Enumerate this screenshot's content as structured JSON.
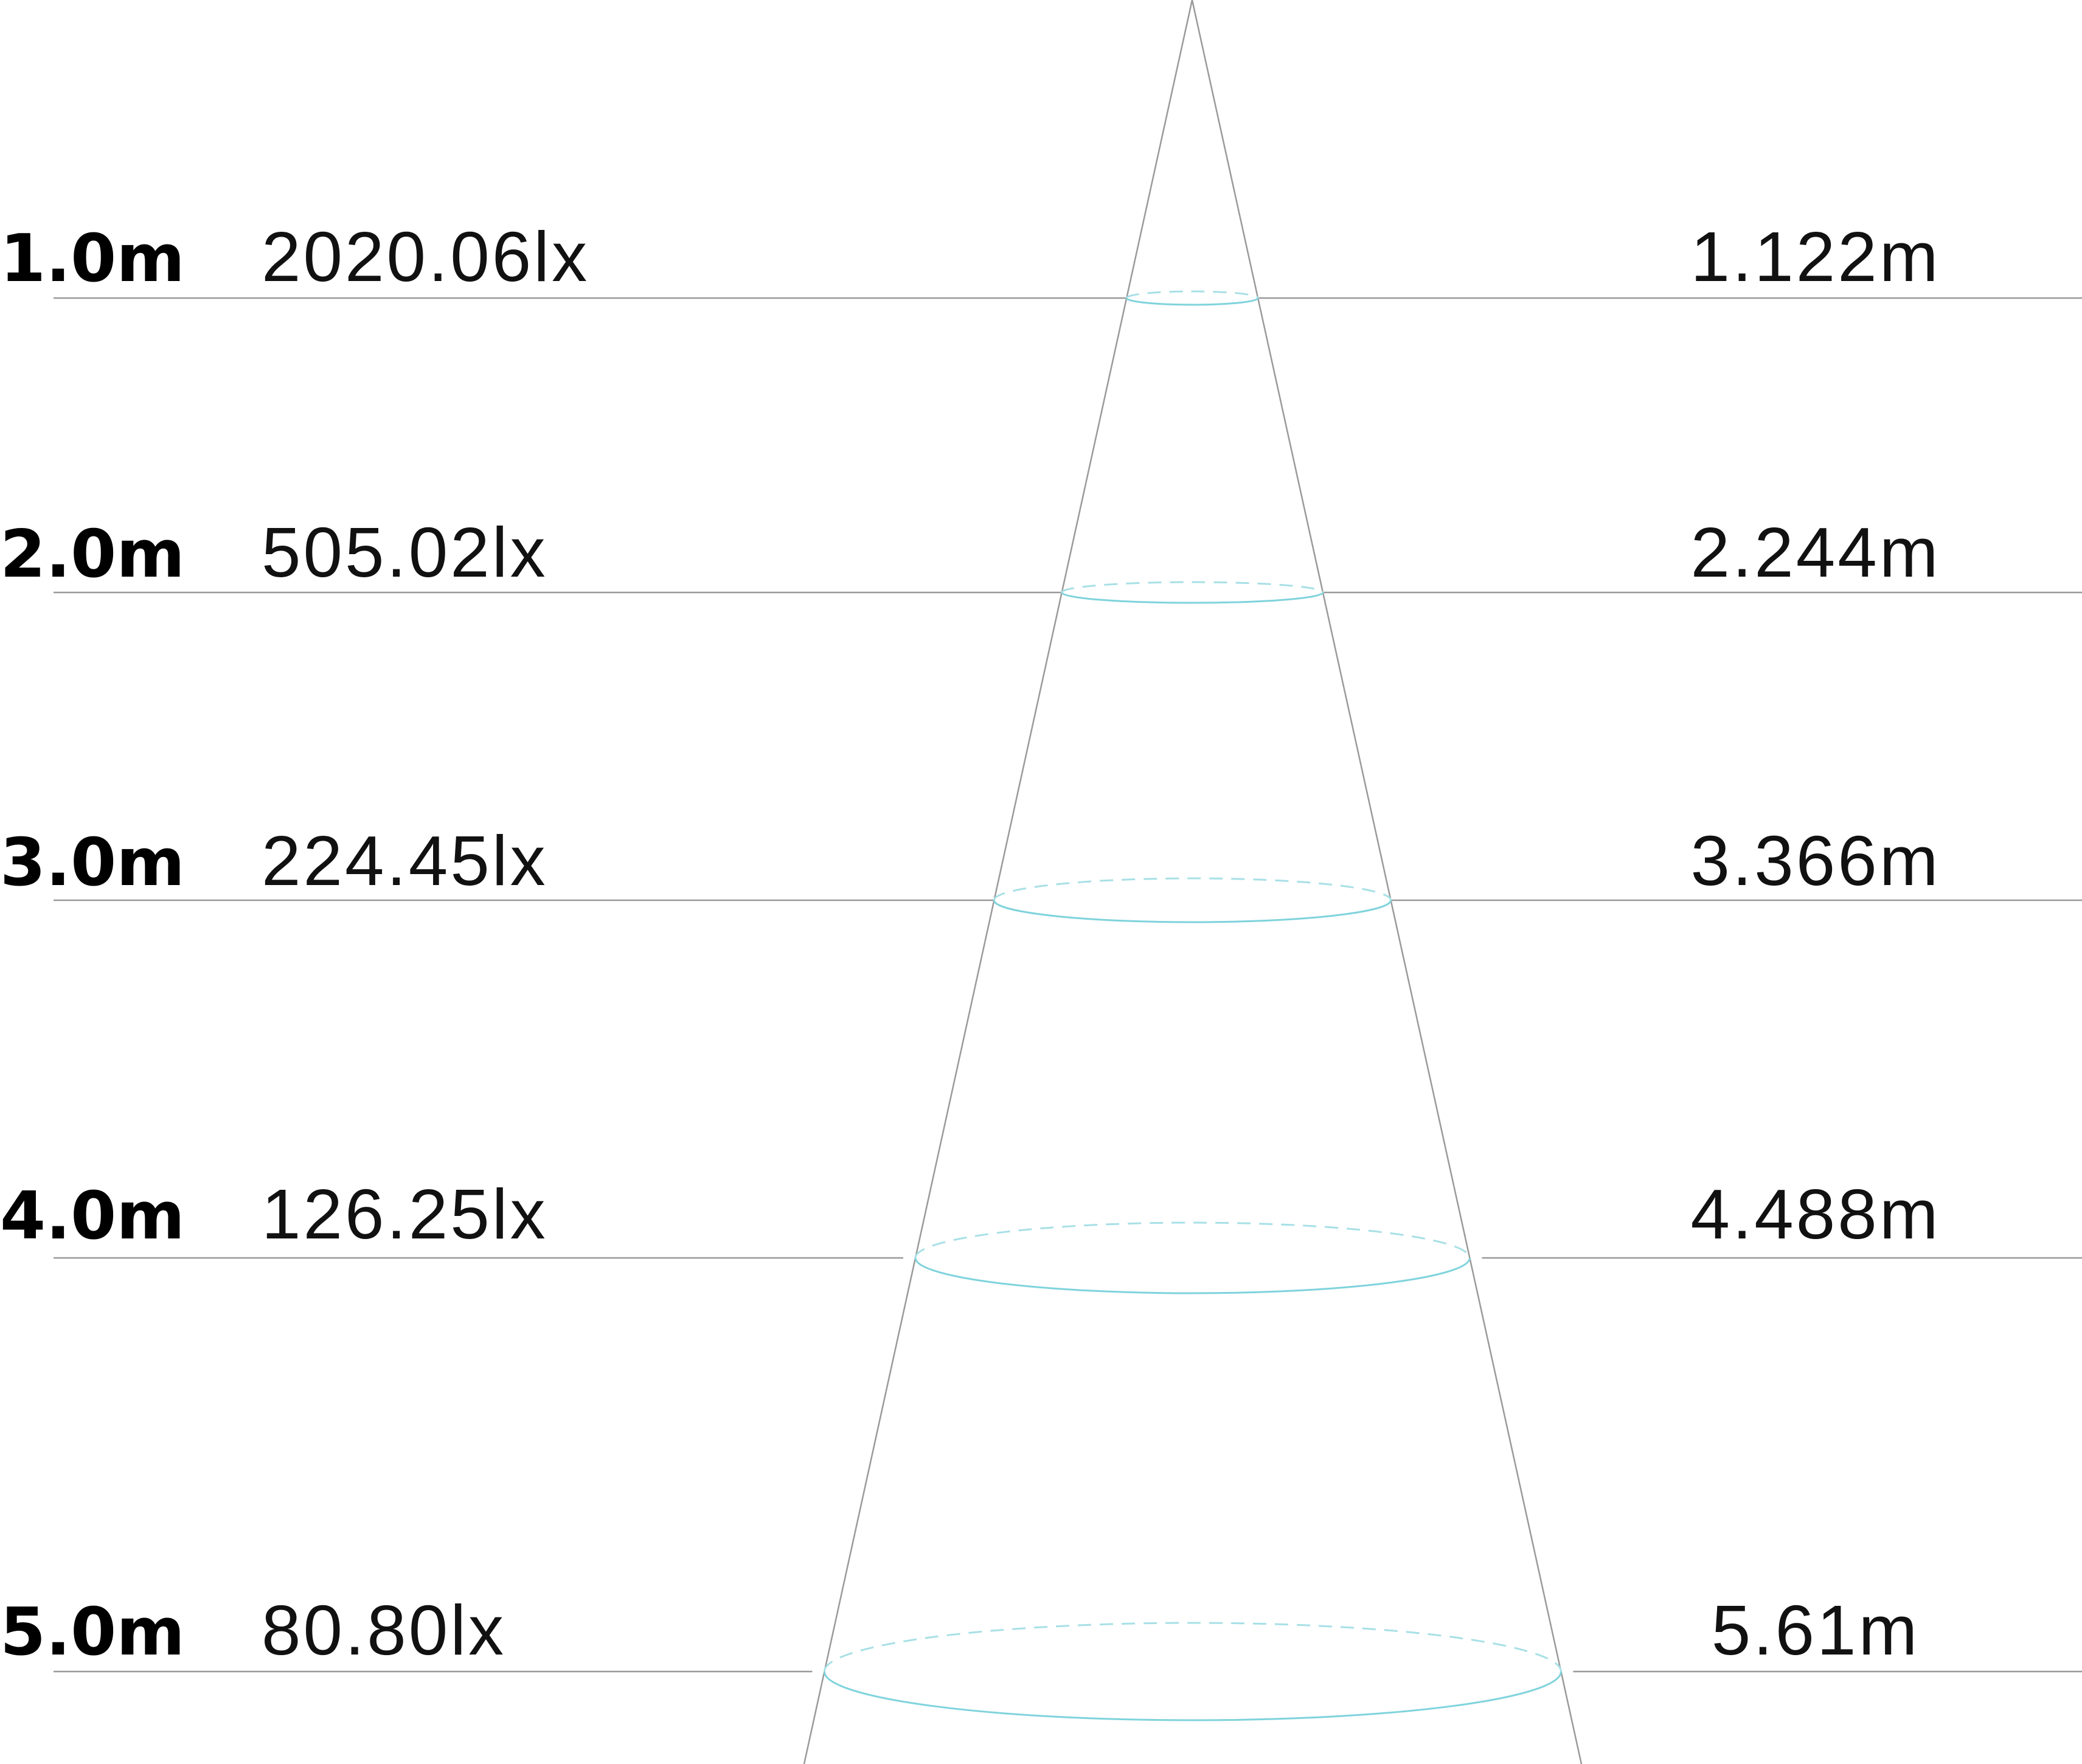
{
  "diagram": {
    "type": "light-beam-cone",
    "colors": {
      "beam_edge": "#9a9a9a",
      "ring": "#7fd3dc",
      "text": "#111111"
    },
    "rows": [
      {
        "distance": "1.0m",
        "illuminance": "2020.06lx",
        "diameter": "1.122m",
        "distance_m": 1.0,
        "diameter_m": 1.122
      },
      {
        "distance": "2.0m",
        "illuminance": "505.02lx",
        "diameter": "2.244m",
        "distance_m": 2.0,
        "diameter_m": 2.244
      },
      {
        "distance": "3.0m",
        "illuminance": "224.45lx",
        "diameter": "3.366m",
        "distance_m": 3.0,
        "diameter_m": 3.366
      },
      {
        "distance": "4.0m",
        "illuminance": "126.25lx",
        "diameter": "4.488m",
        "distance_m": 4.0,
        "diameter_m": 4.488
      },
      {
        "distance": "5.0m",
        "illuminance": "80.80lx",
        "diameter": "5.61m",
        "distance_m": 5.0,
        "diameter_m": 5.61
      }
    ]
  }
}
